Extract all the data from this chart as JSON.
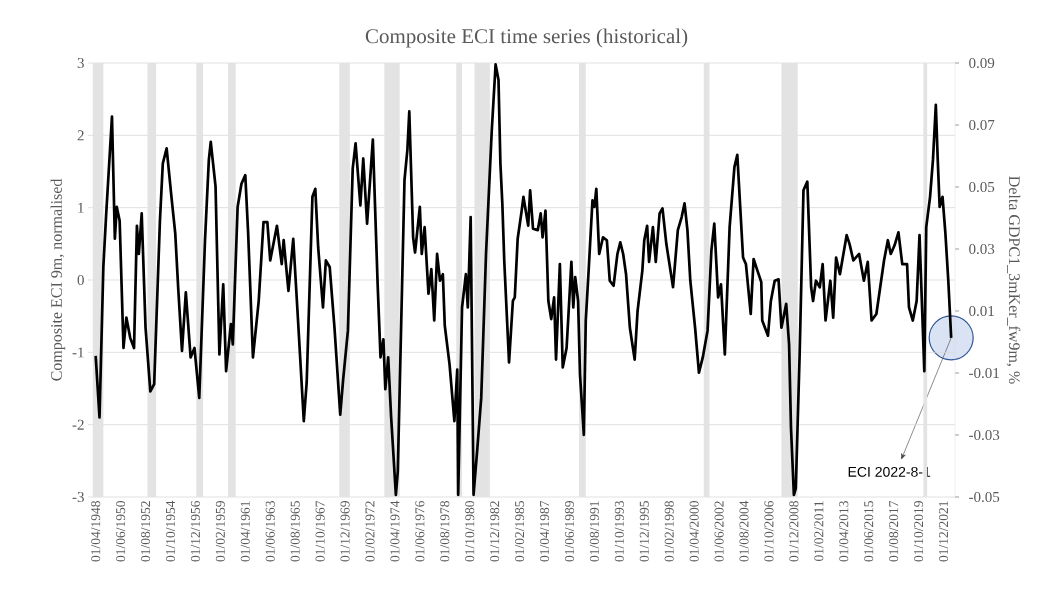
{
  "chart_data": {
    "type": "line",
    "title": "Composite ECI time series (historical)",
    "ylabel": "Composite ECI 9m, normalised",
    "y2label": "Delta GDPC1_3mKer_fw9m, %",
    "xlim": [
      "1947-08",
      "2022-12"
    ],
    "ylim": [
      -3,
      3
    ],
    "y2lim": [
      -0.05,
      0.09
    ],
    "yticks": [
      -3,
      -2,
      -1,
      0,
      1,
      2,
      3
    ],
    "y2ticks": [
      -0.05,
      -0.03,
      -0.01,
      0.01,
      0.03,
      0.05,
      0.07,
      0.09
    ],
    "grid": "y",
    "xticks": [
      {
        "value": "1948-04-01",
        "label": "01/04/1948"
      },
      {
        "value": "1950-06-01",
        "label": "01/06/1950"
      },
      {
        "value": "1952-08-01",
        "label": "01/08/1952"
      },
      {
        "value": "1954-10-01",
        "label": "01/10/1954"
      },
      {
        "value": "1956-12-01",
        "label": "01/12/1956"
      },
      {
        "value": "1959-02-01",
        "label": "01/02/1959"
      },
      {
        "value": "1961-04-01",
        "label": "01/04/1961"
      },
      {
        "value": "1963-06-01",
        "label": "01/06/1963"
      },
      {
        "value": "1965-08-01",
        "label": "01/08/1965"
      },
      {
        "value": "1967-10-01",
        "label": "01/10/1967"
      },
      {
        "value": "1969-12-01",
        "label": "01/12/1969"
      },
      {
        "value": "1972-02-01",
        "label": "01/02/1972"
      },
      {
        "value": "1974-04-01",
        "label": "01/04/1974"
      },
      {
        "value": "1976-06-01",
        "label": "01/06/1976"
      },
      {
        "value": "1978-08-01",
        "label": "01/08/1978"
      },
      {
        "value": "1980-10-01",
        "label": "01/10/1980"
      },
      {
        "value": "1982-12-01",
        "label": "01/12/1982"
      },
      {
        "value": "1985-02-01",
        "label": "01/02/1985"
      },
      {
        "value": "1987-04-01",
        "label": "01/04/1987"
      },
      {
        "value": "1989-06-01",
        "label": "01/06/1989"
      },
      {
        "value": "1991-08-01",
        "label": "01/08/1991"
      },
      {
        "value": "1993-10-01",
        "label": "01/10/1993"
      },
      {
        "value": "1995-12-01",
        "label": "01/12/1995"
      },
      {
        "value": "1998-02-01",
        "label": "01/02/1998"
      },
      {
        "value": "2000-04-01",
        "label": "01/04/2000"
      },
      {
        "value": "2002-06-01",
        "label": "01/06/2002"
      },
      {
        "value": "2004-08-01",
        "label": "01/08/2004"
      },
      {
        "value": "2006-10-01",
        "label": "01/10/2006"
      },
      {
        "value": "2008-12-01",
        "label": "01/12/2008"
      },
      {
        "value": "2011-02-01",
        "label": "01/02/2011"
      },
      {
        "value": "2013-04-01",
        "label": "01/04/2013"
      },
      {
        "value": "2015-06-01",
        "label": "01/06/2015"
      },
      {
        "value": "2017-08-01",
        "label": "01/08/2017"
      },
      {
        "value": "2019-10-01",
        "label": "01/10/2019"
      },
      {
        "value": "2021-12-01",
        "label": "01/12/2021"
      }
    ],
    "bands": [
      {
        "axis": "x",
        "from": "1948-01",
        "to": "1948-12",
        "color": "#e3e3e3"
      },
      {
        "axis": "x",
        "from": "1952-10",
        "to": "1953-07",
        "color": "#e3e3e3"
      },
      {
        "axis": "x",
        "from": "1957-01",
        "to": "1957-08",
        "color": "#e3e3e3"
      },
      {
        "axis": "x",
        "from": "1959-10",
        "to": "1960-06",
        "color": "#e3e3e3"
      },
      {
        "axis": "x",
        "from": "1969-06",
        "to": "1970-05",
        "color": "#e3e3e3"
      },
      {
        "axis": "x",
        "from": "1973-05",
        "to": "1974-09",
        "color": "#e3e3e3"
      },
      {
        "axis": "x",
        "from": "1979-08",
        "to": "1980-02",
        "color": "#e3e3e3"
      },
      {
        "axis": "x",
        "from": "1981-03",
        "to": "1982-07",
        "color": "#e3e3e3"
      },
      {
        "axis": "x",
        "from": "1990-04",
        "to": "1990-11",
        "color": "#e3e3e3"
      },
      {
        "axis": "x",
        "from": "2001-02",
        "to": "2001-08",
        "color": "#e3e3e3"
      },
      {
        "axis": "x",
        "from": "2007-11",
        "to": "2009-04",
        "color": "#e3e3e3"
      },
      {
        "axis": "x",
        "from": "2020-03",
        "to": "2020-07",
        "color": "#e3e3e3"
      }
    ],
    "annotations": [
      {
        "text": "ECI 2022-8-1",
        "x": "2022-08-01",
        "y": -0.8
      }
    ],
    "x": [
      "1948-04",
      "1948-08",
      "1948-12",
      "1949-03",
      "1949-09",
      "1949-12",
      "1950-02",
      "1950-05",
      "1950-09",
      "1950-12",
      "1951-04",
      "1951-08",
      "1951-11",
      "1952-01",
      "1952-04",
      "1952-08",
      "1953-01",
      "1953-05",
      "1953-11",
      "1954-02",
      "1954-06",
      "1954-11",
      "1955-03",
      "1955-06",
      "1955-10",
      "1956-02",
      "1956-07",
      "1956-11",
      "1957-04",
      "1957-10",
      "1958-02",
      "1958-04",
      "1958-09",
      "1959-01",
      "1959-05",
      "1959-08",
      "1960-01",
      "1960-03",
      "1960-08",
      "1960-12",
      "1961-04",
      "1961-07",
      "1961-12",
      "1962-06",
      "1962-11",
      "1963-03",
      "1963-06",
      "1964-01",
      "1964-06",
      "1964-08",
      "1965-01",
      "1965-06",
      "1965-11",
      "1966-05",
      "1966-08",
      "1967-02",
      "1967-05",
      "1967-08",
      "1968-01",
      "1968-04",
      "1968-08",
      "1969-01",
      "1969-07",
      "1969-10",
      "1970-03",
      "1970-08",
      "1970-11",
      "1971-04",
      "1971-07",
      "1971-11",
      "1972-05",
      "1972-10",
      "1973-01",
      "1973-04",
      "1973-06",
      "1973-09",
      "1973-12",
      "1974-05",
      "1974-07",
      "1975-02",
      "1975-05",
      "1975-07",
      "1975-11",
      "1976-01",
      "1976-06",
      "1976-08",
      "1976-11",
      "1977-03",
      "1977-06",
      "1977-09",
      "1977-12",
      "1978-03",
      "1978-06",
      "1978-08",
      "1979-01",
      "1979-06",
      "1979-09",
      "1979-10",
      "1980-02",
      "1980-06",
      "1980-08",
      "1980-11",
      "1981-02",
      "1981-06",
      "1981-10",
      "1982-03",
      "1982-09",
      "1983-01",
      "1983-04",
      "1983-06",
      "1983-08",
      "1983-10",
      "1984-03",
      "1984-07",
      "1984-09",
      "1984-12",
      "1985-04",
      "1985-06",
      "1985-11",
      "1986-01",
      "1986-04",
      "1986-09",
      "1986-12",
      "1987-02",
      "1987-05",
      "1987-08",
      "1987-11",
      "1988-02",
      "1988-04",
      "1988-08",
      "1988-11",
      "1989-03",
      "1989-05",
      "1989-08",
      "1989-10",
      "1989-12",
      "1990-03",
      "1990-05",
      "1990-09",
      "1990-11",
      "1991-02",
      "1991-06",
      "1991-08",
      "1991-10",
      "1992-01",
      "1992-05",
      "1992-09",
      "1992-12",
      "1993-04",
      "1993-08",
      "1993-11",
      "1994-02",
      "1994-05",
      "1994-09",
      "1995-02",
      "1995-05",
      "1995-10",
      "1995-12",
      "1996-03",
      "1996-05",
      "1996-09",
      "1996-12",
      "1997-04",
      "1997-07",
      "1997-11",
      "1998-06",
      "1998-11",
      "1999-03",
      "1999-06",
      "1999-09",
      "1999-12",
      "2000-05",
      "2000-09",
      "2001-01",
      "2001-06",
      "2001-10",
      "2002-01",
      "2002-05",
      "2002-08",
      "2002-12",
      "2003-05",
      "2003-10",
      "2004-01",
      "2004-07",
      "2004-10",
      "2005-03",
      "2005-06",
      "2005-10",
      "2006-02",
      "2006-03",
      "2006-09",
      "2006-12",
      "2007-04",
      "2007-08",
      "2007-11",
      "2008-04",
      "2008-07",
      "2008-09",
      "2008-12",
      "2009-02",
      "2009-06",
      "2009-10",
      "2010-02",
      "2010-06",
      "2010-08",
      "2010-11",
      "2011-03",
      "2011-06",
      "2011-09",
      "2012-02",
      "2012-05",
      "2012-08",
      "2012-12",
      "2013-03",
      "2013-07",
      "2013-10",
      "2014-02",
      "2014-08",
      "2015-01",
      "2015-05",
      "2015-09",
      "2016-02",
      "2016-06",
      "2016-10",
      "2017-02",
      "2017-05",
      "2017-09",
      "2018-01",
      "2018-05",
      "2018-10",
      "2018-12",
      "2019-04",
      "2019-08",
      "2019-11",
      "2020-04",
      "2020-06",
      "2020-10",
      "2021-01",
      "2021-04",
      "2021-06",
      "2021-08",
      "2021-11",
      "2022-02",
      "2022-05",
      "2022-08"
    ],
    "series": [
      {
        "color": "#000000",
        "values": [
          -1.05,
          -1.9,
          0.18,
          0.92,
          2.26,
          0.57,
          1.01,
          0.82,
          -0.94,
          -0.52,
          -0.8,
          -0.94,
          0.75,
          0.36,
          0.92,
          -0.66,
          -1.54,
          -1.44,
          0.82,
          1.61,
          1.82,
          1.15,
          0.64,
          -0.1,
          -0.98,
          -0.17,
          -1.07,
          -0.94,
          -1.63,
          0.55,
          1.66,
          1.91,
          1.29,
          -1.03,
          -0.06,
          -1.26,
          -0.61,
          -0.89,
          1.01,
          1.33,
          1.45,
          0.64,
          -1.07,
          -0.29,
          0.8,
          0.8,
          0.27,
          0.75,
          0.22,
          0.55,
          -0.15,
          0.57,
          -0.56,
          -1.95,
          -1.42,
          1.15,
          1.26,
          0.45,
          -0.38,
          0.27,
          0.18,
          -0.66,
          -1.86,
          -1.38,
          -0.7,
          1.54,
          1.89,
          1.03,
          1.68,
          0.78,
          1.94,
          -0.06,
          -1.07,
          -0.82,
          -1.51,
          -1.07,
          -1.88,
          -2.97,
          -2.65,
          1.38,
          1.8,
          2.33,
          0.59,
          0.38,
          1.01,
          0.36,
          0.73,
          -0.19,
          0.15,
          -0.56,
          0.36,
          -0.01,
          0.08,
          -0.63,
          -1.17,
          -1.95,
          -1.24,
          -2.97,
          -0.38,
          0.08,
          -0.38,
          0.87,
          -2.97,
          -2.32,
          -1.63,
          0.36,
          2.07,
          2.98,
          2.77,
          1.61,
          1.06,
          0.27,
          -1.14,
          -0.29,
          -0.24,
          0.57,
          0.94,
          1.15,
          0.75,
          1.24,
          0.71,
          0.69,
          0.92,
          0.59,
          0.96,
          -0.29,
          -0.54,
          -0.24,
          -1.1,
          0.22,
          -1.21,
          -0.94,
          -0.47,
          0.25,
          -0.38,
          0.04,
          -0.29,
          -1.31,
          -2.14,
          -0.56,
          0.13,
          1.1,
          1.01,
          1.26,
          0.36,
          0.59,
          0.55,
          -0.01,
          -0.08,
          0.36,
          0.52,
          0.36,
          0.08,
          -0.66,
          -1.1,
          -0.43,
          0.13,
          0.55,
          0.75,
          0.25,
          0.73,
          0.25,
          0.92,
          0.99,
          0.5,
          -0.1,
          0.69,
          0.87,
          1.06,
          0.69,
          -0.01,
          -0.66,
          -1.28,
          -1.07,
          -0.7,
          0.41,
          0.78,
          -0.24,
          -0.06,
          -1.03,
          0.73,
          1.56,
          1.73,
          0.31,
          0.22,
          -0.47,
          0.29,
          0.13,
          -0.03,
          -0.56,
          -0.77,
          -0.29,
          -0.01,
          0.01,
          -0.66,
          -0.33,
          -0.89,
          -2.05,
          -2.97,
          -2.88,
          -1.03,
          1.24,
          1.36,
          -0.1,
          -0.29,
          -0.01,
          -0.1,
          0.22,
          -0.56,
          -0.01,
          -0.52,
          0.31,
          0.08,
          0.31,
          0.62,
          0.5,
          0.27,
          0.36,
          -0.01,
          0.25,
          -0.56,
          -0.47,
          -0.1,
          0.27,
          0.55,
          0.36,
          0.48,
          0.66,
          0.22,
          0.22,
          -0.38,
          -0.56,
          -0.29,
          0.62,
          -1.26,
          0.73,
          1.15,
          1.66,
          2.42,
          1.66,
          1.01,
          1.15,
          0.64,
          -0.01,
          -0.8
        ]
      }
    ]
  }
}
